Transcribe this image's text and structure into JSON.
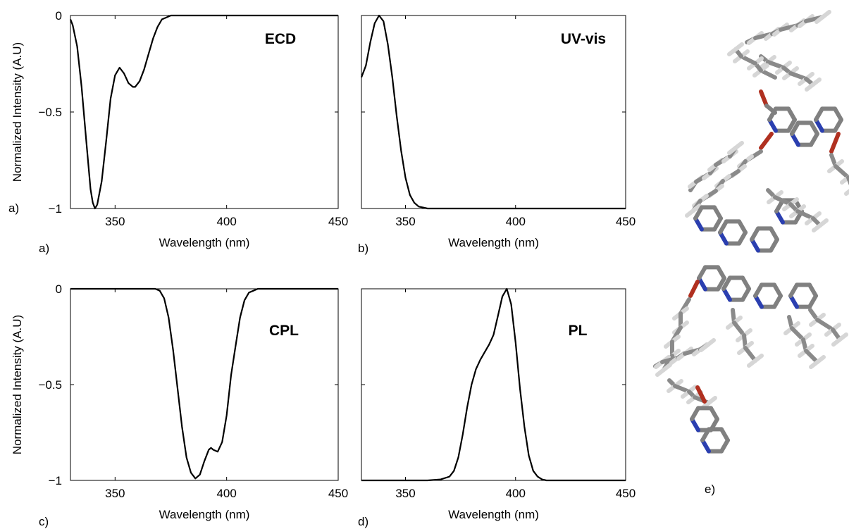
{
  "molecule_panel_label": "e)",
  "stray_label": "a)",
  "chart_data": [
    {
      "type": "line",
      "panel_label": "a)",
      "title": "ECD",
      "xlabel": "Wavelength (nm)",
      "ylabel": "Normalized Intensity (A.U)",
      "xlim": [
        330,
        450
      ],
      "ylim": [
        -1,
        0
      ],
      "xticks": [
        350,
        400,
        450
      ],
      "yticks": [
        0,
        -0.5,
        -1
      ],
      "ytick_labels": [
        "0",
        "−0.5",
        "−1"
      ],
      "x": [
        330,
        331,
        333,
        335,
        337,
        339,
        340,
        341,
        342,
        344,
        346,
        348,
        350,
        352,
        354,
        356,
        358,
        359,
        361,
        363,
        365,
        367,
        369,
        371,
        373,
        375,
        377,
        380,
        390,
        400,
        420,
        450
      ],
      "y": [
        -0.02,
        -0.05,
        -0.16,
        -0.37,
        -0.64,
        -0.9,
        -0.97,
        -1.0,
        -0.98,
        -0.86,
        -0.65,
        -0.43,
        -0.31,
        -0.27,
        -0.3,
        -0.35,
        -0.37,
        -0.37,
        -0.34,
        -0.28,
        -0.2,
        -0.12,
        -0.06,
        -0.02,
        -0.01,
        0,
        0,
        0,
        0,
        0,
        0,
        0
      ]
    },
    {
      "type": "line",
      "panel_label": "b)",
      "title": "UV-vis",
      "xlabel": "Wavelength (nm)",
      "ylabel": "",
      "xlim": [
        330,
        450
      ],
      "ylim": [
        -1,
        0
      ],
      "xticks": [
        350,
        400,
        450
      ],
      "yticks": [
        0,
        -0.5,
        -1
      ],
      "ytick_labels": [],
      "x": [
        330,
        332,
        334,
        336,
        338,
        340,
        342,
        344,
        346,
        348,
        350,
        352,
        354,
        356,
        358,
        360,
        363,
        366,
        370,
        380,
        400,
        450
      ],
      "y": [
        -0.32,
        -0.26,
        -0.14,
        -0.04,
        0,
        -0.03,
        -0.15,
        -0.32,
        -0.52,
        -0.7,
        -0.84,
        -0.93,
        -0.97,
        -0.99,
        -0.995,
        -1.0,
        -1.0,
        -1.0,
        -1.0,
        -1.0,
        -1.0,
        -1.0
      ]
    },
    {
      "type": "line",
      "panel_label": "c)",
      "title": "CPL",
      "xlabel": "Wavelength (nm)",
      "ylabel": "Normalized Intensity (A.U)",
      "xlim": [
        330,
        450
      ],
      "ylim": [
        -1,
        0
      ],
      "xticks": [
        350,
        400,
        450
      ],
      "yticks": [
        0,
        -0.5,
        -1
      ],
      "ytick_labels": [
        "0",
        "−0.5",
        "−1"
      ],
      "x": [
        330,
        360,
        368,
        370,
        372,
        374,
        376,
        378,
        380,
        382,
        384,
        386,
        388,
        390,
        392,
        393,
        394,
        396,
        398,
        400,
        402,
        404,
        406,
        408,
        410,
        412,
        414,
        420,
        450
      ],
      "y": [
        0,
        0,
        0,
        -0.01,
        -0.05,
        -0.15,
        -0.32,
        -0.52,
        -0.72,
        -0.88,
        -0.96,
        -0.99,
        -0.97,
        -0.9,
        -0.84,
        -0.83,
        -0.84,
        -0.85,
        -0.8,
        -0.66,
        -0.45,
        -0.3,
        -0.15,
        -0.06,
        -0.02,
        -0.01,
        0,
        0,
        0
      ]
    },
    {
      "type": "line",
      "panel_label": "d)",
      "title": "PL",
      "xlabel": "Wavelength (nm)",
      "ylabel": "",
      "xlim": [
        330,
        450
      ],
      "ylim": [
        -1,
        0
      ],
      "xticks": [
        350,
        400,
        450
      ],
      "yticks": [
        0,
        -0.5,
        -1
      ],
      "ytick_labels": [],
      "x": [
        330,
        360,
        366,
        370,
        372,
        374,
        376,
        378,
        380,
        382,
        384,
        386,
        388,
        390,
        392,
        394,
        396,
        398,
        400,
        402,
        404,
        406,
        408,
        410,
        412,
        414,
        420,
        450
      ],
      "y": [
        -1,
        -1,
        -0.995,
        -0.98,
        -0.95,
        -0.88,
        -0.76,
        -0.62,
        -0.5,
        -0.42,
        -0.37,
        -0.33,
        -0.29,
        -0.24,
        -0.14,
        -0.04,
        0,
        -0.08,
        -0.28,
        -0.52,
        -0.72,
        -0.87,
        -0.95,
        -0.98,
        -0.995,
        -1.0,
        -1.0,
        -1.0
      ]
    }
  ]
}
